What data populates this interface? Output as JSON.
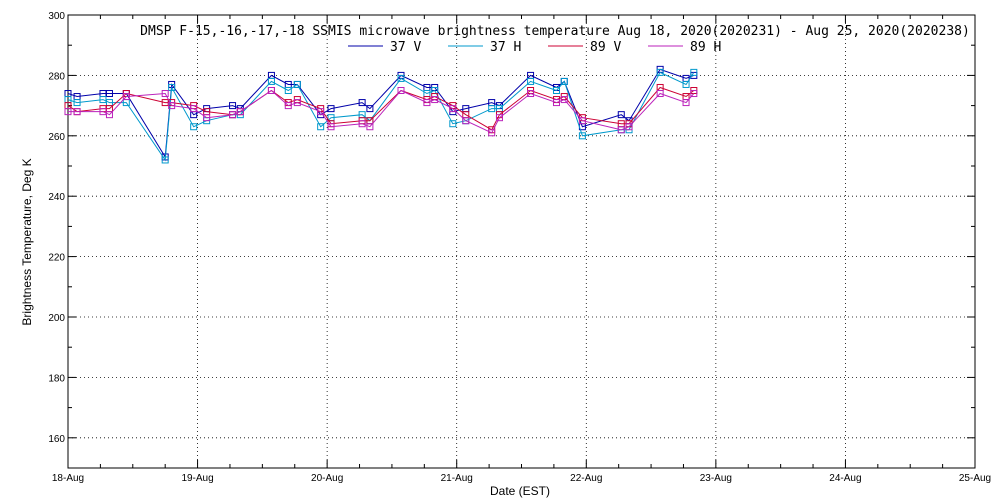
{
  "chart_data": {
    "type": "line",
    "title": "DMSP F-15,-16,-17,-18 SSMIS microwave brightness temperature Aug 18, 2020(2020231) - Aug 25, 2020(2020238)",
    "xlabel": "Date (EST)",
    "ylabel": "Brightness Temperature, Deg K",
    "xlim": [
      0,
      7
    ],
    "ylim": [
      150,
      300
    ],
    "x_ticks": [
      {
        "value": 0,
        "label": "18-Aug"
      },
      {
        "value": 1,
        "label": "19-Aug"
      },
      {
        "value": 2,
        "label": "20-Aug"
      },
      {
        "value": 3,
        "label": "21-Aug"
      },
      {
        "value": 4,
        "label": "22-Aug"
      },
      {
        "value": 5,
        "label": "23-Aug"
      },
      {
        "value": 6,
        "label": "24-Aug"
      },
      {
        "value": 7,
        "label": "25-Aug"
      }
    ],
    "y_ticks": [
      160,
      180,
      200,
      220,
      240,
      260,
      280,
      300
    ],
    "grid": true,
    "legend_position": "top-center",
    "series": [
      {
        "name": "37 V",
        "color": "#0000aa",
        "points": [
          [
            0.0,
            274
          ],
          [
            0.07,
            273
          ],
          [
            0.27,
            274
          ],
          [
            0.32,
            274
          ],
          [
            0.45,
            274
          ],
          [
            0.75,
            253
          ],
          [
            0.8,
            277
          ],
          [
            0.97,
            267
          ],
          [
            1.07,
            269
          ],
          [
            1.27,
            270
          ],
          [
            1.33,
            269
          ],
          [
            1.57,
            280
          ],
          [
            1.7,
            277
          ],
          [
            1.77,
            277
          ],
          [
            1.95,
            267
          ],
          [
            2.03,
            269
          ],
          [
            2.27,
            271
          ],
          [
            2.33,
            269
          ],
          [
            2.57,
            280
          ],
          [
            2.77,
            276
          ],
          [
            2.83,
            276
          ],
          [
            2.97,
            268
          ],
          [
            3.07,
            269
          ],
          [
            3.27,
            271
          ],
          [
            3.33,
            270
          ],
          [
            3.57,
            280
          ],
          [
            3.77,
            276
          ],
          [
            3.83,
            278
          ],
          [
            3.97,
            263
          ],
          [
            4.27,
            267
          ],
          [
            4.33,
            265
          ],
          [
            4.57,
            282
          ],
          [
            4.77,
            279
          ],
          [
            4.83,
            280
          ]
        ]
      },
      {
        "name": "37 H",
        "color": "#0099cc",
        "points": [
          [
            0.0,
            272
          ],
          [
            0.07,
            271
          ],
          [
            0.27,
            272
          ],
          [
            0.32,
            271
          ],
          [
            0.45,
            271
          ],
          [
            0.75,
            252
          ],
          [
            0.8,
            276
          ],
          [
            0.97,
            263
          ],
          [
            1.07,
            265
          ],
          [
            1.27,
            267
          ],
          [
            1.33,
            267
          ],
          [
            1.57,
            278
          ],
          [
            1.7,
            275
          ],
          [
            1.77,
            277
          ],
          [
            1.95,
            263
          ],
          [
            2.03,
            266
          ],
          [
            2.27,
            267
          ],
          [
            2.33,
            265
          ],
          [
            2.57,
            279
          ],
          [
            2.77,
            274
          ],
          [
            2.83,
            275
          ],
          [
            2.97,
            264
          ],
          [
            3.07,
            265
          ],
          [
            3.27,
            269
          ],
          [
            3.33,
            269
          ],
          [
            3.57,
            278
          ],
          [
            3.77,
            275
          ],
          [
            3.83,
            278
          ],
          [
            3.97,
            260
          ],
          [
            4.27,
            262
          ],
          [
            4.33,
            262
          ],
          [
            4.57,
            281
          ],
          [
            4.77,
            277
          ],
          [
            4.83,
            281
          ]
        ]
      },
      {
        "name": "89 V",
        "color": "#cc0033",
        "points": [
          [
            0.0,
            270
          ],
          [
            0.07,
            268
          ],
          [
            0.27,
            269
          ],
          [
            0.32,
            269
          ],
          [
            0.45,
            274
          ],
          [
            0.75,
            271
          ],
          [
            0.8,
            271
          ],
          [
            0.97,
            270
          ],
          [
            1.07,
            268
          ],
          [
            1.27,
            267
          ],
          [
            1.33,
            268
          ],
          [
            1.57,
            275
          ],
          [
            1.7,
            271
          ],
          [
            1.77,
            272
          ],
          [
            1.95,
            269
          ],
          [
            2.03,
            264
          ],
          [
            2.27,
            265
          ],
          [
            2.33,
            265
          ],
          [
            2.57,
            275
          ],
          [
            2.77,
            272
          ],
          [
            2.83,
            273
          ],
          [
            2.97,
            270
          ],
          [
            3.07,
            267
          ],
          [
            3.27,
            262
          ],
          [
            3.33,
            267
          ],
          [
            3.57,
            275
          ],
          [
            3.77,
            272
          ],
          [
            3.83,
            273
          ],
          [
            3.97,
            266
          ],
          [
            4.27,
            264
          ],
          [
            4.33,
            264
          ],
          [
            4.57,
            276
          ],
          [
            4.77,
            273
          ],
          [
            4.83,
            275
          ]
        ]
      },
      {
        "name": "89 H",
        "color": "#bb22bb",
        "points": [
          [
            0.0,
            268
          ],
          [
            0.07,
            268
          ],
          [
            0.27,
            268
          ],
          [
            0.32,
            267
          ],
          [
            0.45,
            273
          ],
          [
            0.75,
            274
          ],
          [
            0.8,
            270
          ],
          [
            0.97,
            269
          ],
          [
            1.07,
            266
          ],
          [
            1.27,
            267
          ],
          [
            1.33,
            268
          ],
          [
            1.57,
            275
          ],
          [
            1.7,
            270
          ],
          [
            1.77,
            271
          ],
          [
            1.95,
            268
          ],
          [
            2.03,
            263
          ],
          [
            2.27,
            264
          ],
          [
            2.33,
            263
          ],
          [
            2.57,
            275
          ],
          [
            2.77,
            271
          ],
          [
            2.83,
            272
          ],
          [
            2.97,
            269
          ],
          [
            3.07,
            265
          ],
          [
            3.27,
            261
          ],
          [
            3.33,
            266
          ],
          [
            3.57,
            274
          ],
          [
            3.77,
            271
          ],
          [
            3.83,
            272
          ],
          [
            3.97,
            265
          ],
          [
            4.27,
            262
          ],
          [
            4.33,
            263
          ],
          [
            4.57,
            274
          ],
          [
            4.77,
            271
          ],
          [
            4.83,
            274
          ]
        ]
      }
    ]
  }
}
